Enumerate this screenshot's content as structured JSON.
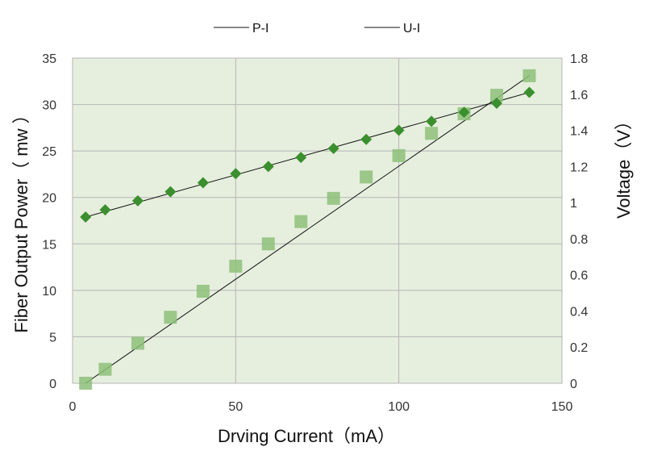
{
  "chart_data": {
    "type": "scatter",
    "title": "",
    "xlabel": "Drving Current（mA）",
    "ylabel": "Fiber Output Power（ mw ）",
    "y2label": "Voltage（V）",
    "xlim": [
      0,
      150
    ],
    "ylim": [
      0,
      35
    ],
    "y2lim": [
      0,
      1.8
    ],
    "x_ticks": [
      "0",
      "50",
      "100",
      "150"
    ],
    "y_ticks": [
      "0",
      "5",
      "10",
      "15",
      "20",
      "25",
      "30",
      "35"
    ],
    "y2_ticks": [
      "0",
      "0.2",
      "0.4",
      "0.6",
      "0.8",
      "1",
      "1.2",
      "1.4",
      "1.6",
      "1.8"
    ],
    "grid": true,
    "legend_position": "top",
    "plot_background": "#e6efde",
    "series": [
      {
        "name": "P-I",
        "axis": "left",
        "marker": "square",
        "color": "#8dc07a",
        "x": [
          4,
          10,
          20,
          30,
          40,
          50,
          60,
          70,
          80,
          90,
          100,
          110,
          120,
          130,
          140
        ],
        "y": [
          0,
          1.5,
          4.3,
          7.1,
          9.9,
          12.6,
          15.0,
          17.4,
          19.9,
          22.2,
          24.5,
          26.9,
          29.0,
          31.0,
          33.1
        ],
        "trend": {
          "x": [
            4,
            140
          ],
          "y": [
            0,
            33.1
          ]
        }
      },
      {
        "name": "U-I",
        "axis": "right",
        "marker": "diamond",
        "color": "#3b8f2e",
        "x": [
          4,
          10,
          20,
          30,
          40,
          50,
          60,
          70,
          80,
          90,
          100,
          110,
          120,
          130,
          140
        ],
        "y": [
          0.92,
          0.96,
          1.01,
          1.06,
          1.11,
          1.16,
          1.2,
          1.25,
          1.3,
          1.35,
          1.4,
          1.45,
          1.5,
          1.55,
          1.61
        ],
        "trend": {
          "x": [
            4,
            140
          ],
          "y": [
            0.92,
            1.61
          ]
        }
      }
    ]
  }
}
